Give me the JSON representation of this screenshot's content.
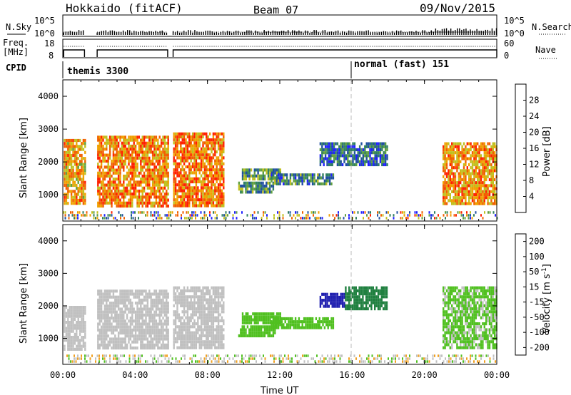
{
  "header": {
    "title": "Hokkaido (fitACF)",
    "beam": "Beam 07",
    "date": "09/Nov/2015"
  },
  "summary": {
    "nsky_label": "N.Sky",
    "nsky_ticks": [
      "10^5",
      "10^0"
    ],
    "nsearch_label": "N.Search",
    "nsearch_ticks": [
      "10^5",
      "10^0"
    ],
    "freq_label_1": "Freq.",
    "freq_label_2": "[MHz]",
    "freq_ticks": [
      "18",
      "8"
    ],
    "nave_label": "Nave",
    "nave_ticks": [
      "60",
      "0"
    ],
    "cpid_label": "CPID",
    "cpid_modes": [
      {
        "name": "themis 3300",
        "start_hour": 0
      },
      {
        "name": "normal (fast) 151",
        "start_hour": 16
      }
    ]
  },
  "axes": {
    "x_ticks": [
      "00:00",
      "04:00",
      "08:00",
      "12:00",
      "16:00",
      "20:00",
      "00:00"
    ],
    "x_tick_hours": [
      0,
      4,
      8,
      12,
      16,
      20,
      24
    ],
    "xlabel": "Time UT",
    "ylabel": "Slant Range [km]",
    "y_ticks": [
      "1000",
      "2000",
      "3000",
      "4000"
    ],
    "y_tick_values": [
      1000,
      2000,
      3000,
      4000
    ],
    "ylim": [
      200,
      4500
    ],
    "xlim": [
      0,
      24
    ]
  },
  "colorbars": {
    "power": {
      "label": "Power [dB]",
      "ticks": [
        "4",
        "8",
        "12",
        "16",
        "20",
        "24",
        "28"
      ],
      "tick_values": [
        4,
        8,
        12,
        16,
        20,
        24,
        28
      ],
      "range": [
        0,
        32
      ]
    },
    "velocity": {
      "label": "Velocity [m s",
      "label_sup": "-1",
      "label_end": "]",
      "ticks": [
        "200",
        "100",
        "50",
        "15",
        "-15",
        "-50",
        "-100",
        "-200"
      ]
    }
  },
  "chart_data": [
    {
      "type": "heatmap",
      "name": "power",
      "x_unit": "hours UT",
      "y_unit": "km",
      "regions": [
        {
          "t0": 0.05,
          "t1": 1.2,
          "r0": 700,
          "r1": 2700,
          "value": 22
        },
        {
          "t0": 1.9,
          "t1": 5.8,
          "r0": 700,
          "r1": 2800,
          "value": 24
        },
        {
          "t0": 6.1,
          "t1": 8.9,
          "r0": 700,
          "r1": 2900,
          "value": 25
        },
        {
          "t0": 9.7,
          "t1": 11.7,
          "r0": 1100,
          "r1": 1400,
          "value": 12
        },
        {
          "t0": 9.9,
          "t1": 12.0,
          "r0": 1500,
          "r1": 1800,
          "value": 12
        },
        {
          "t0": 11.5,
          "t1": 15.0,
          "r0": 1350,
          "r1": 1650,
          "value": 10
        },
        {
          "t0": 14.2,
          "t1": 17.9,
          "r0": 1950,
          "r1": 2600,
          "value": 8
        },
        {
          "t0": 21.0,
          "t1": 24.0,
          "r0": 700,
          "r1": 2600,
          "value": 23
        }
      ],
      "scatter_band": {
        "t0": 0.0,
        "t1": 24.0,
        "r0": 250,
        "r1": 500
      }
    },
    {
      "type": "heatmap",
      "name": "velocity",
      "x_unit": "hours UT",
      "y_unit": "km",
      "regions": [
        {
          "t0": 0.05,
          "t1": 1.2,
          "r0": 700,
          "r1": 2000,
          "value": 0
        },
        {
          "t0": 1.9,
          "t1": 5.8,
          "r0": 700,
          "r1": 2500,
          "value": 0
        },
        {
          "t0": 6.1,
          "t1": 8.9,
          "r0": 700,
          "r1": 2600,
          "value": 0
        },
        {
          "t0": 9.7,
          "t1": 11.7,
          "r0": 1100,
          "r1": 1400,
          "value": 30
        },
        {
          "t0": 9.9,
          "t1": 12.0,
          "r0": 1500,
          "r1": 1800,
          "value": 30
        },
        {
          "t0": 11.5,
          "t1": 15.0,
          "r0": 1350,
          "r1": 1650,
          "value": 25
        },
        {
          "t0": 14.2,
          "t1": 15.6,
          "r0": 1950,
          "r1": 2400,
          "value": 180
        },
        {
          "t0": 15.6,
          "t1": 17.9,
          "r0": 1950,
          "r1": 2600,
          "value": 60
        },
        {
          "t0": 21.0,
          "t1": 24.0,
          "r0": 700,
          "r1": 2600,
          "value": 20
        }
      ],
      "scatter_band": {
        "t0": 0.0,
        "t1": 24.0,
        "r0": 250,
        "r1": 500
      }
    }
  ],
  "colors": {
    "power_scale": [
      "#2020ff",
      "#2050a0",
      "#308060",
      "#60a040",
      "#c0c020",
      "#f0a000",
      "#f06000",
      "#ff2000"
    ],
    "velocity_scale": [
      "#2020b0",
      "#2070c0",
      "#208040",
      "#50c020",
      "#c0c0c0",
      "#f0a020",
      "#f06000",
      "#ff1000"
    ],
    "mode_line": "#888888"
  }
}
